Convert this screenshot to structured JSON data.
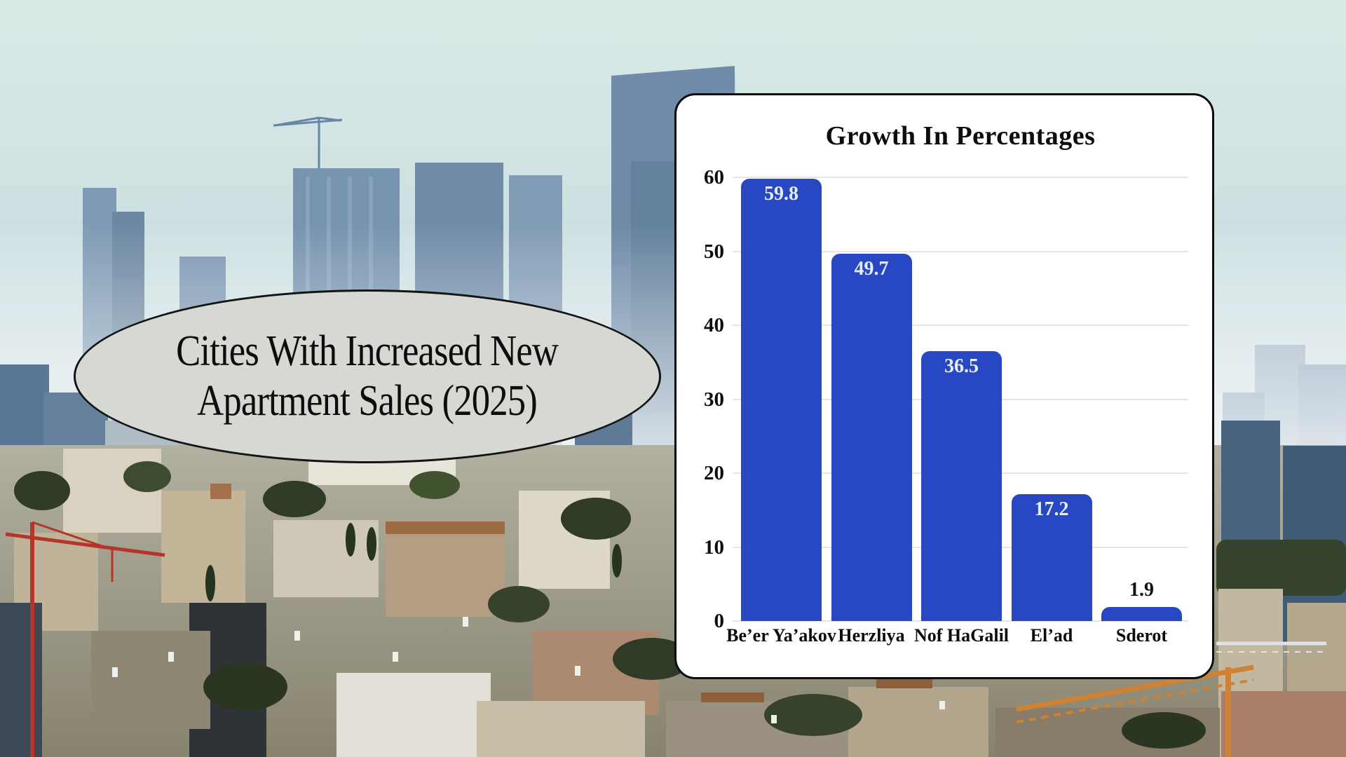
{
  "title_ellipse": {
    "lines": [
      "Cities With Increased New",
      "Apartment Sales (2025)"
    ],
    "fill": "#d6d8d4",
    "border": "#141414",
    "text_color": "#0d0d0d"
  },
  "chart_data": {
    "type": "bar",
    "title": "Growth In Percentages",
    "categories": [
      "Be’er Ya’akov",
      "Herzliya",
      "Nof HaGalil",
      "El’ad",
      "Sderot"
    ],
    "values": [
      59.8,
      49.7,
      36.5,
      17.2,
      1.9
    ],
    "value_labels": [
      "59.8",
      "49.7",
      "36.5",
      "17.2",
      "1.9"
    ],
    "xlabel": "",
    "ylabel": "",
    "ylim": [
      0,
      60
    ],
    "yticks": [
      0,
      10,
      20,
      30,
      40,
      50,
      60
    ],
    "grid": "horizontal",
    "legend": "none",
    "bar_color": "#2748c2",
    "gridline_color": "#e4e4e4",
    "value_label_inside_color": "#e6edf7",
    "value_label_outside_color": "#121212",
    "card_background": "#ffffff",
    "card_border": "#0c0c0c",
    "text_color": "#0d0d0d"
  }
}
